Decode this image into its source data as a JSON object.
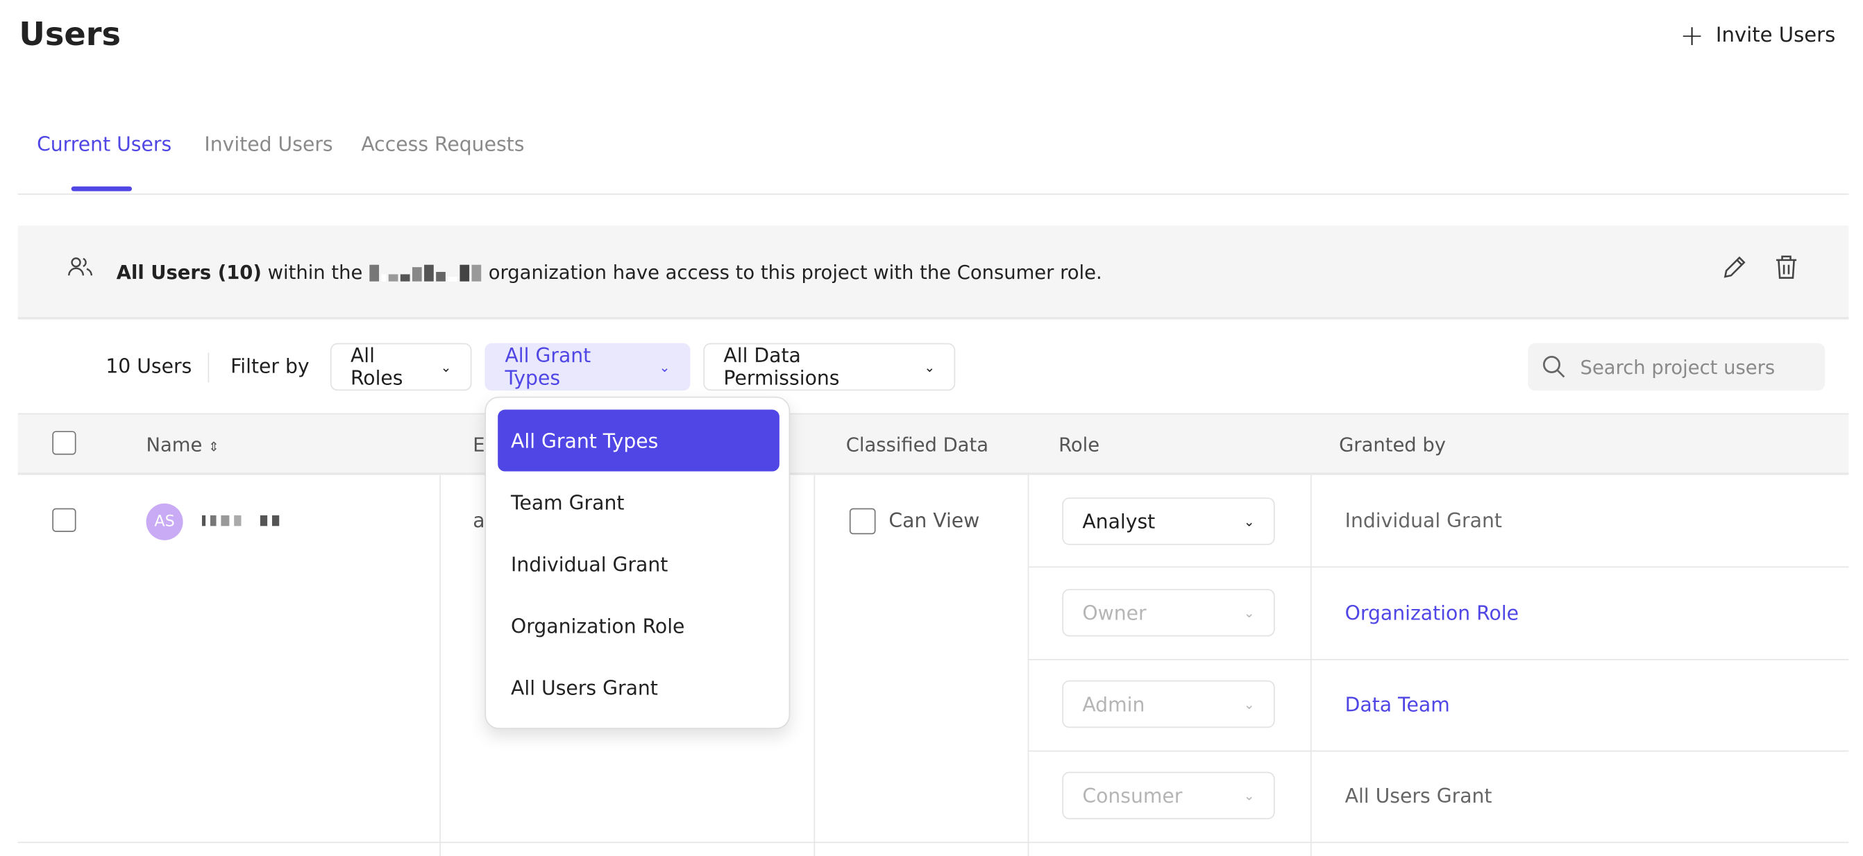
{
  "header": {
    "title": "Users",
    "invite_label": "Invite Users"
  },
  "tabs": [
    {
      "label": "Current Users",
      "active": true
    },
    {
      "label": "Invited Users",
      "active": false
    },
    {
      "label": "Access Requests",
      "active": false
    }
  ],
  "banner": {
    "bold": "All Users (10)",
    "pre": "within the",
    "post": "organization have access to this project with the Consumer role."
  },
  "filters": {
    "count": "10 Users",
    "filter_by": "Filter by",
    "roles": "All Roles",
    "grant_types": "All Grant Types",
    "data_permissions": "All Data Permissions",
    "search_placeholder": "Search project users"
  },
  "table": {
    "columns": {
      "name": "Name",
      "email": "E",
      "classified": "Classified Data",
      "role": "Role",
      "granted_by": "Granted by"
    },
    "rows": [
      {
        "initials": "AS",
        "email": "a",
        "classified_label": "Can View",
        "grants": [
          {
            "role": "Analyst",
            "enabled": true,
            "granted_by": "Individual Grant",
            "link": false
          },
          {
            "role": "Owner",
            "enabled": false,
            "granted_by": "Organization Role",
            "link": true
          },
          {
            "role": "Admin",
            "enabled": false,
            "granted_by": "Data Team",
            "link": true
          },
          {
            "role": "Consumer",
            "enabled": false,
            "granted_by": "All Users Grant",
            "link": false
          }
        ]
      }
    ]
  },
  "dropdown": {
    "items": [
      "All Grant Types",
      "Team Grant",
      "Individual Grant",
      "Organization Role",
      "All Users Grant"
    ],
    "selected": "All Grant Types"
  },
  "colors": {
    "accent": "#4f46e5",
    "avatar": "#c9aaf5",
    "banner_bg": "#f5f5f5"
  }
}
